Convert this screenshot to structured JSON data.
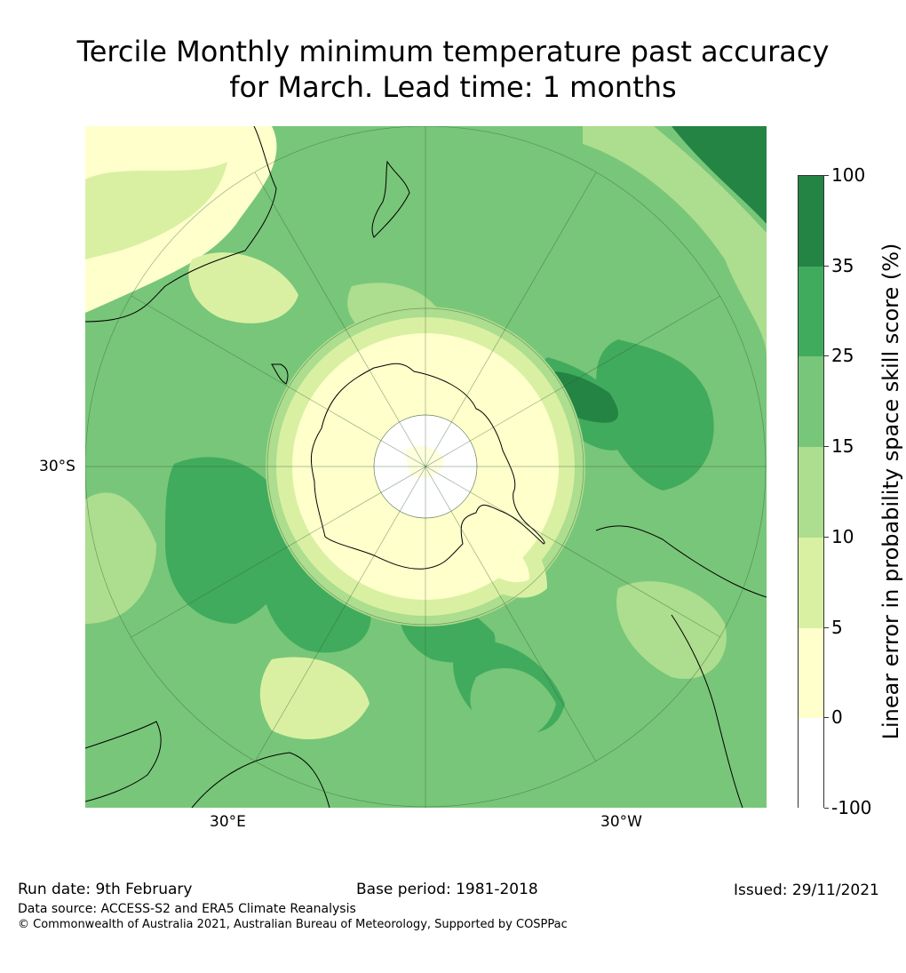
{
  "title": {
    "line1": "Tercile Monthly minimum temperature past accuracy",
    "line2": "for March. Lead time: 1 months"
  },
  "map": {
    "lat_label": "30°S",
    "lon_labels": {
      "left": "30°E",
      "right": "30°W"
    },
    "colors": {
      "c0": "#ffffff",
      "c1": "#ffffcc",
      "c2": "#d9f0a3",
      "c3": "#addd8e",
      "c4": "#78c679",
      "c5": "#41ab5d",
      "c6": "#238443"
    }
  },
  "colorbar": {
    "title": "Linear error in probability space skill score (%)",
    "ticks": [
      "100",
      "35",
      "25",
      "15",
      "10",
      "5",
      "0",
      "-100"
    ],
    "segments": [
      {
        "from": 35,
        "to": 100,
        "color": "#238443"
      },
      {
        "from": 25,
        "to": 35,
        "color": "#41ab5d"
      },
      {
        "from": 15,
        "to": 25,
        "color": "#78c679"
      },
      {
        "from": 10,
        "to": 15,
        "color": "#addd8e"
      },
      {
        "from": 5,
        "to": 10,
        "color": "#d9f0a3"
      },
      {
        "from": 0,
        "to": 5,
        "color": "#ffffcc"
      },
      {
        "from": -100,
        "to": 0,
        "color": "#ffffff"
      }
    ]
  },
  "footer": {
    "run_date": "Run date: 9th February",
    "base_period": "Base period: 1981-2018",
    "issued": "Issued: 29/11/2021",
    "data_source": "Data source: ACCESS-S2 and ERA5 Climate Reanalysis",
    "copyright": "© Commonwealth of Australia 2021, Australian Bureau of Meteorology, Supported by COSPPac"
  }
}
